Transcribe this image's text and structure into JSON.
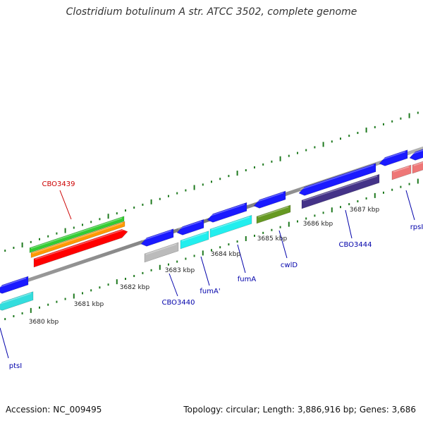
{
  "title": "Clostridium botulinum A str. ATCC 3502, complete genome",
  "footer": {
    "accession": "Accession: NC_009495",
    "summary": "Topology: circular; Length: 3,886,916 bp; Genes: 3,686"
  },
  "colors": {
    "backbone": "#8c8c8c",
    "tick": "#1f7a1f",
    "label_red": "#cc0000",
    "label_blue": "#0000aa"
  },
  "kbp_labels": [
    "3680 kbp",
    "3681 kbp",
    "3682 kbp",
    "3683 kbp",
    "3684 kbp",
    "3685 kbp",
    "3686 kbp",
    "3687 kbp"
  ],
  "gene_labels": [
    {
      "text": "CBO3439",
      "color": "#cc0000"
    },
    {
      "text": "CBO3440",
      "color": "#0000aa"
    },
    {
      "text": "fumA'",
      "color": "#0000aa"
    },
    {
      "text": "fumA",
      "color": "#0000aa"
    },
    {
      "text": "cwlD",
      "color": "#0000aa"
    },
    {
      "text": "CBO3444",
      "color": "#0000aa"
    },
    {
      "text": "ptsI",
      "color": "#0000aa"
    },
    {
      "text": "rpsI",
      "color": "#0000aa"
    }
  ],
  "features": [
    {
      "name": "gene-ptsI",
      "color": "#1a1aff"
    },
    {
      "name": "cds-ptsI",
      "color": "#33dddd"
    },
    {
      "name": "gene-cbo3439",
      "color": "#33cc33"
    },
    {
      "name": "misc-cbo3439",
      "color": "#ff9900"
    },
    {
      "name": "cds-cbo3439",
      "color": "#ff0000"
    },
    {
      "name": "gene-cbo3440",
      "color": "#1a1aff"
    },
    {
      "name": "cds-cbo3440",
      "color": "#bbbbbb"
    },
    {
      "name": "gene-fumA-prime",
      "color": "#1a1aff"
    },
    {
      "name": "cds-fumA-prime",
      "color": "#22eeee"
    },
    {
      "name": "gene-fumA",
      "color": "#1a1aff"
    },
    {
      "name": "cds-fumA",
      "color": "#22eeee"
    },
    {
      "name": "gene-cwlD",
      "color": "#1a1aff"
    },
    {
      "name": "cds-cwlD",
      "color": "#669922"
    },
    {
      "name": "gene-cbo3444",
      "color": "#1a1aff"
    },
    {
      "name": "cds-cbo3444",
      "color": "#443388"
    },
    {
      "name": "gene-rpsI",
      "color": "#1a1aff"
    },
    {
      "name": "cds-rpsI",
      "color": "#ee7777"
    }
  ]
}
